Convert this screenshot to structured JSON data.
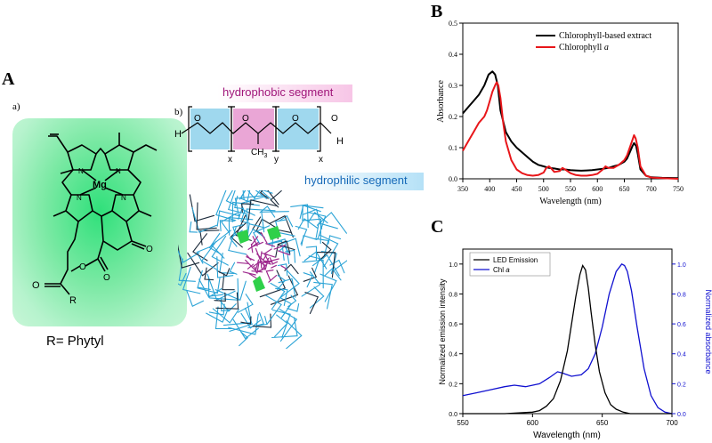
{
  "figure": {
    "panel_A": "A",
    "panel_B": "B",
    "panel_C": "C",
    "sub_a": "a)",
    "sub_b": "b)"
  },
  "molecule": {
    "metal": "Mg",
    "r_group_label": "R= Phytyl",
    "atom_N": "N",
    "atom_O": "O",
    "atom_R": "R",
    "polymer_H": "H",
    "polymer_O": "O",
    "polymer_CH3": "CH",
    "polymer_CH3_sub": "3",
    "sub_x": "x",
    "sub_y": "y",
    "hydrophobic_label": "hydrophobic segment",
    "hydrophilic_label": "hydrophilic segment"
  },
  "colors": {
    "black_series": "#000000",
    "red_series": "#e8161a",
    "blue_series": "#1010d0",
    "hydrophobic": "#a0167a",
    "hydrophilic": "#1569b8"
  },
  "chart_data": [
    {
      "id": "B",
      "type": "line",
      "title": "",
      "xlabel": "Wavelength (nm)",
      "ylabel": "Absorbance",
      "xlim": [
        350,
        750
      ],
      "ylim": [
        0.0,
        0.5
      ],
      "xticks": [
        "350",
        "400",
        "450",
        "500",
        "550",
        "600",
        "650",
        "700",
        "750"
      ],
      "yticks": [
        "0.0",
        "0.1",
        "0.2",
        "0.3",
        "0.4",
        "0.5"
      ],
      "legend": [
        "Chlorophyll-based extract",
        "Chlorophyll a"
      ],
      "legend_prefix_red": "Chlorophyll ",
      "legend_italic_red": "a",
      "series": [
        {
          "name": "Chlorophyll-based extract",
          "x": [
            350,
            360,
            370,
            380,
            390,
            398,
            405,
            410,
            415,
            420,
            430,
            440,
            450,
            460,
            470,
            480,
            490,
            500,
            510,
            520,
            530,
            540,
            550,
            560,
            570,
            580,
            590,
            600,
            610,
            620,
            630,
            640,
            650,
            655,
            660,
            665,
            668,
            672,
            675,
            680,
            690,
            700,
            720,
            750
          ],
          "y": [
            0.21,
            0.23,
            0.25,
            0.27,
            0.3,
            0.335,
            0.345,
            0.335,
            0.3,
            0.22,
            0.15,
            0.12,
            0.1,
            0.085,
            0.07,
            0.055,
            0.045,
            0.04,
            0.035,
            0.033,
            0.03,
            0.03,
            0.028,
            0.027,
            0.026,
            0.027,
            0.028,
            0.03,
            0.032,
            0.035,
            0.04,
            0.045,
            0.055,
            0.065,
            0.085,
            0.105,
            0.115,
            0.105,
            0.08,
            0.03,
            0.01,
            0.005,
            0.003,
            0.002
          ]
        },
        {
          "name": "Chlorophyll a",
          "x": [
            350,
            360,
            370,
            380,
            390,
            395,
            400,
            405,
            410,
            413,
            416,
            420,
            425,
            430,
            440,
            450,
            460,
            470,
            480,
            490,
            500,
            505,
            510,
            515,
            520,
            530,
            535,
            540,
            550,
            560,
            570,
            580,
            590,
            600,
            610,
            615,
            620,
            630,
            640,
            650,
            655,
            660,
            665,
            668,
            671,
            675,
            680,
            690,
            700,
            720,
            750
          ],
          "y": [
            0.09,
            0.12,
            0.15,
            0.18,
            0.2,
            0.22,
            0.25,
            0.28,
            0.3,
            0.31,
            0.3,
            0.26,
            0.18,
            0.12,
            0.06,
            0.03,
            0.018,
            0.012,
            0.01,
            0.012,
            0.02,
            0.035,
            0.04,
            0.032,
            0.022,
            0.025,
            0.035,
            0.03,
            0.018,
            0.012,
            0.01,
            0.01,
            0.012,
            0.016,
            0.03,
            0.04,
            0.035,
            0.035,
            0.045,
            0.06,
            0.075,
            0.1,
            0.125,
            0.14,
            0.13,
            0.1,
            0.04,
            0.01,
            0.004,
            0.002,
            0.0
          ]
        }
      ]
    },
    {
      "id": "C",
      "type": "line",
      "title": "",
      "xlabel": "Wavelength (nm)",
      "ylabel": "Normalized emission intensity",
      "y2label": "Normalized absorbance",
      "xlim": [
        550,
        700
      ],
      "ylim": [
        0.0,
        1.1
      ],
      "y2lim": [
        0.0,
        1.1
      ],
      "xticks": [
        "550",
        "600",
        "650",
        "700"
      ],
      "yticks": [
        "0.0",
        "0.2",
        "0.4",
        "0.6",
        "0.8",
        "1.0"
      ],
      "y2ticks": [
        "0.0",
        "0.2",
        "0.4",
        "0.6",
        "0.8",
        "1.0"
      ],
      "legend": [
        "LED Emission",
        "Chl a"
      ],
      "legend_prefix_blue": "Chl ",
      "legend_italic_blue": "a",
      "series": [
        {
          "name": "LED Emission",
          "axis": "left",
          "x": [
            550,
            580,
            600,
            605,
            610,
            615,
            620,
            625,
            628,
            631,
            634,
            636,
            638,
            640,
            642,
            645,
            648,
            652,
            656,
            660,
            665,
            670,
            680,
            700
          ],
          "y": [
            0.0,
            0.0,
            0.01,
            0.02,
            0.05,
            0.1,
            0.22,
            0.42,
            0.6,
            0.78,
            0.93,
            0.99,
            0.96,
            0.84,
            0.68,
            0.46,
            0.28,
            0.14,
            0.06,
            0.03,
            0.01,
            0.0,
            0.0,
            0.0
          ]
        },
        {
          "name": "Chl a",
          "axis": "right",
          "x": [
            550,
            560,
            570,
            580,
            587,
            595,
            605,
            612,
            618,
            622,
            628,
            635,
            640,
            645,
            650,
            655,
            660,
            664,
            666,
            668,
            671,
            675,
            680,
            685,
            690,
            695,
            700
          ],
          "y": [
            0.12,
            0.14,
            0.16,
            0.18,
            0.19,
            0.18,
            0.2,
            0.24,
            0.28,
            0.27,
            0.25,
            0.26,
            0.3,
            0.4,
            0.58,
            0.8,
            0.95,
            1.0,
            0.99,
            0.95,
            0.82,
            0.58,
            0.3,
            0.12,
            0.04,
            0.01,
            0.0
          ]
        }
      ]
    }
  ]
}
